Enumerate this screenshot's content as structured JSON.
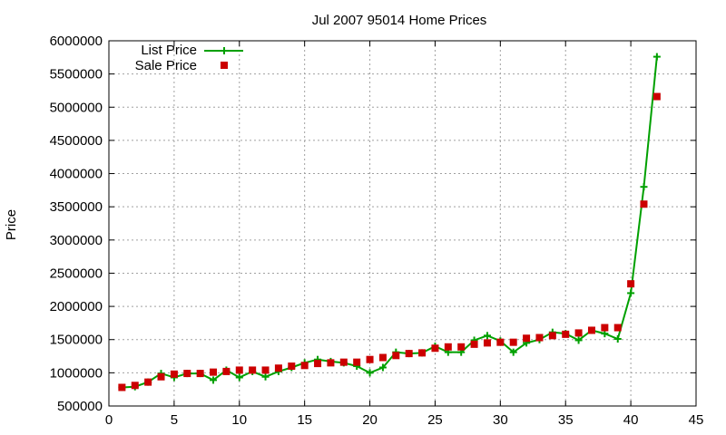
{
  "chart_data": {
    "type": "line",
    "title": "Jul 2007 95014 Home Prices",
    "xlabel": "",
    "ylabel": "Price",
    "xlim": [
      0,
      45
    ],
    "ylim": [
      500000,
      6000000
    ],
    "x_ticks": [
      0,
      5,
      10,
      15,
      20,
      25,
      30,
      35,
      40,
      45
    ],
    "y_ticks": [
      500000,
      1000000,
      1500000,
      2000000,
      2500000,
      3000000,
      3500000,
      4000000,
      4500000,
      5000000,
      5500000,
      6000000
    ],
    "grid": true,
    "legend_position": "top-left",
    "series": [
      {
        "name": "List Price",
        "style": "line+cross",
        "color": "#00a000",
        "x": [
          1,
          2,
          3,
          4,
          5,
          6,
          7,
          8,
          9,
          10,
          11,
          12,
          13,
          14,
          15,
          16,
          17,
          18,
          19,
          20,
          21,
          22,
          23,
          24,
          25,
          26,
          27,
          28,
          29,
          30,
          31,
          32,
          33,
          34,
          35,
          36,
          37,
          38,
          39,
          40,
          41,
          42
        ],
        "values": [
          780000,
          790000,
          860000,
          990000,
          930000,
          990000,
          990000,
          890000,
          1040000,
          930000,
          1020000,
          940000,
          1020000,
          1080000,
          1150000,
          1200000,
          1170000,
          1150000,
          1100000,
          1000000,
          1080000,
          1310000,
          1290000,
          1300000,
          1400000,
          1310000,
          1310000,
          1490000,
          1560000,
          1480000,
          1310000,
          1450000,
          1500000,
          1610000,
          1590000,
          1490000,
          1640000,
          1590000,
          1510000,
          2200000,
          3800000,
          5760000
        ]
      },
      {
        "name": "Sale Price",
        "style": "square",
        "color": "#cc0000",
        "x": [
          1,
          2,
          3,
          4,
          5,
          6,
          7,
          8,
          9,
          10,
          11,
          12,
          13,
          14,
          15,
          16,
          17,
          18,
          19,
          20,
          21,
          22,
          23,
          24,
          25,
          26,
          27,
          28,
          29,
          30,
          31,
          32,
          33,
          34,
          35,
          36,
          37,
          38,
          39,
          40,
          41,
          42
        ],
        "values": [
          780000,
          810000,
          860000,
          940000,
          980000,
          990000,
          990000,
          1010000,
          1020000,
          1040000,
          1040000,
          1040000,
          1070000,
          1100000,
          1110000,
          1140000,
          1150000,
          1160000,
          1160000,
          1200000,
          1230000,
          1260000,
          1290000,
          1300000,
          1370000,
          1390000,
          1390000,
          1430000,
          1450000,
          1460000,
          1460000,
          1520000,
          1530000,
          1560000,
          1580000,
          1600000,
          1640000,
          1680000,
          1680000,
          2340000,
          3540000,
          5160000
        ]
      }
    ]
  }
}
